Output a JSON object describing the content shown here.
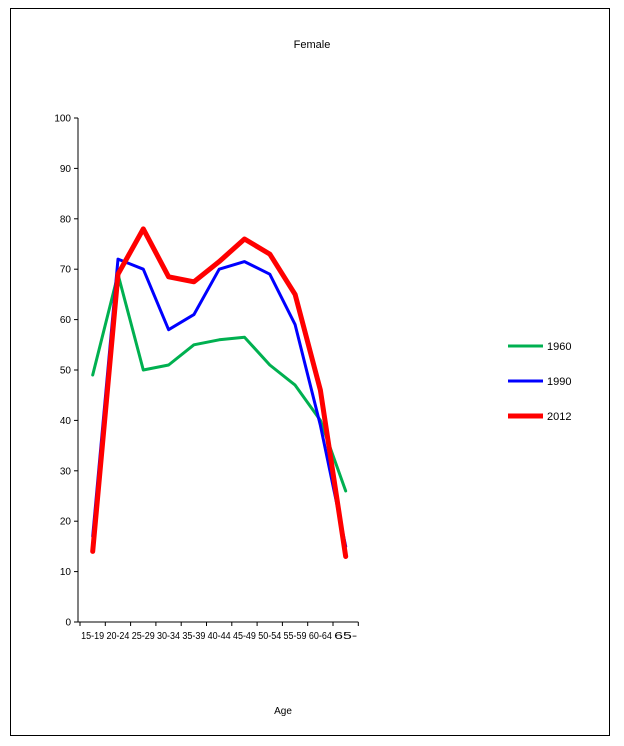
{
  "chart_data": {
    "type": "line",
    "title": "Female",
    "xlabel": "Age",
    "ylabel": "",
    "ylim": [
      0,
      100
    ],
    "yticks": [
      0,
      10,
      20,
      30,
      40,
      50,
      60,
      70,
      80,
      90,
      100
    ],
    "categories": [
      "15-19",
      "20-24",
      "25-29",
      "30-34",
      "35-39",
      "40-44",
      "45-49",
      "50-54",
      "55-59",
      "60-64",
      "65-"
    ],
    "grid": false,
    "legend_position": "right",
    "series": [
      {
        "name": "1960",
        "color": "#00b050",
        "values": [
          49,
          69,
          50,
          51,
          55,
          56,
          56.5,
          51,
          47,
          40,
          26
        ]
      },
      {
        "name": "1990",
        "color": "#0000ff",
        "values": [
          17,
          72,
          70,
          58,
          61,
          70,
          71.5,
          69,
          59,
          39,
          15
        ]
      },
      {
        "name": "2012",
        "color": "#ff0000",
        "values": [
          14,
          69,
          78,
          68.5,
          67.5,
          71.5,
          76,
          73,
          65,
          46,
          13
        ]
      }
    ]
  }
}
